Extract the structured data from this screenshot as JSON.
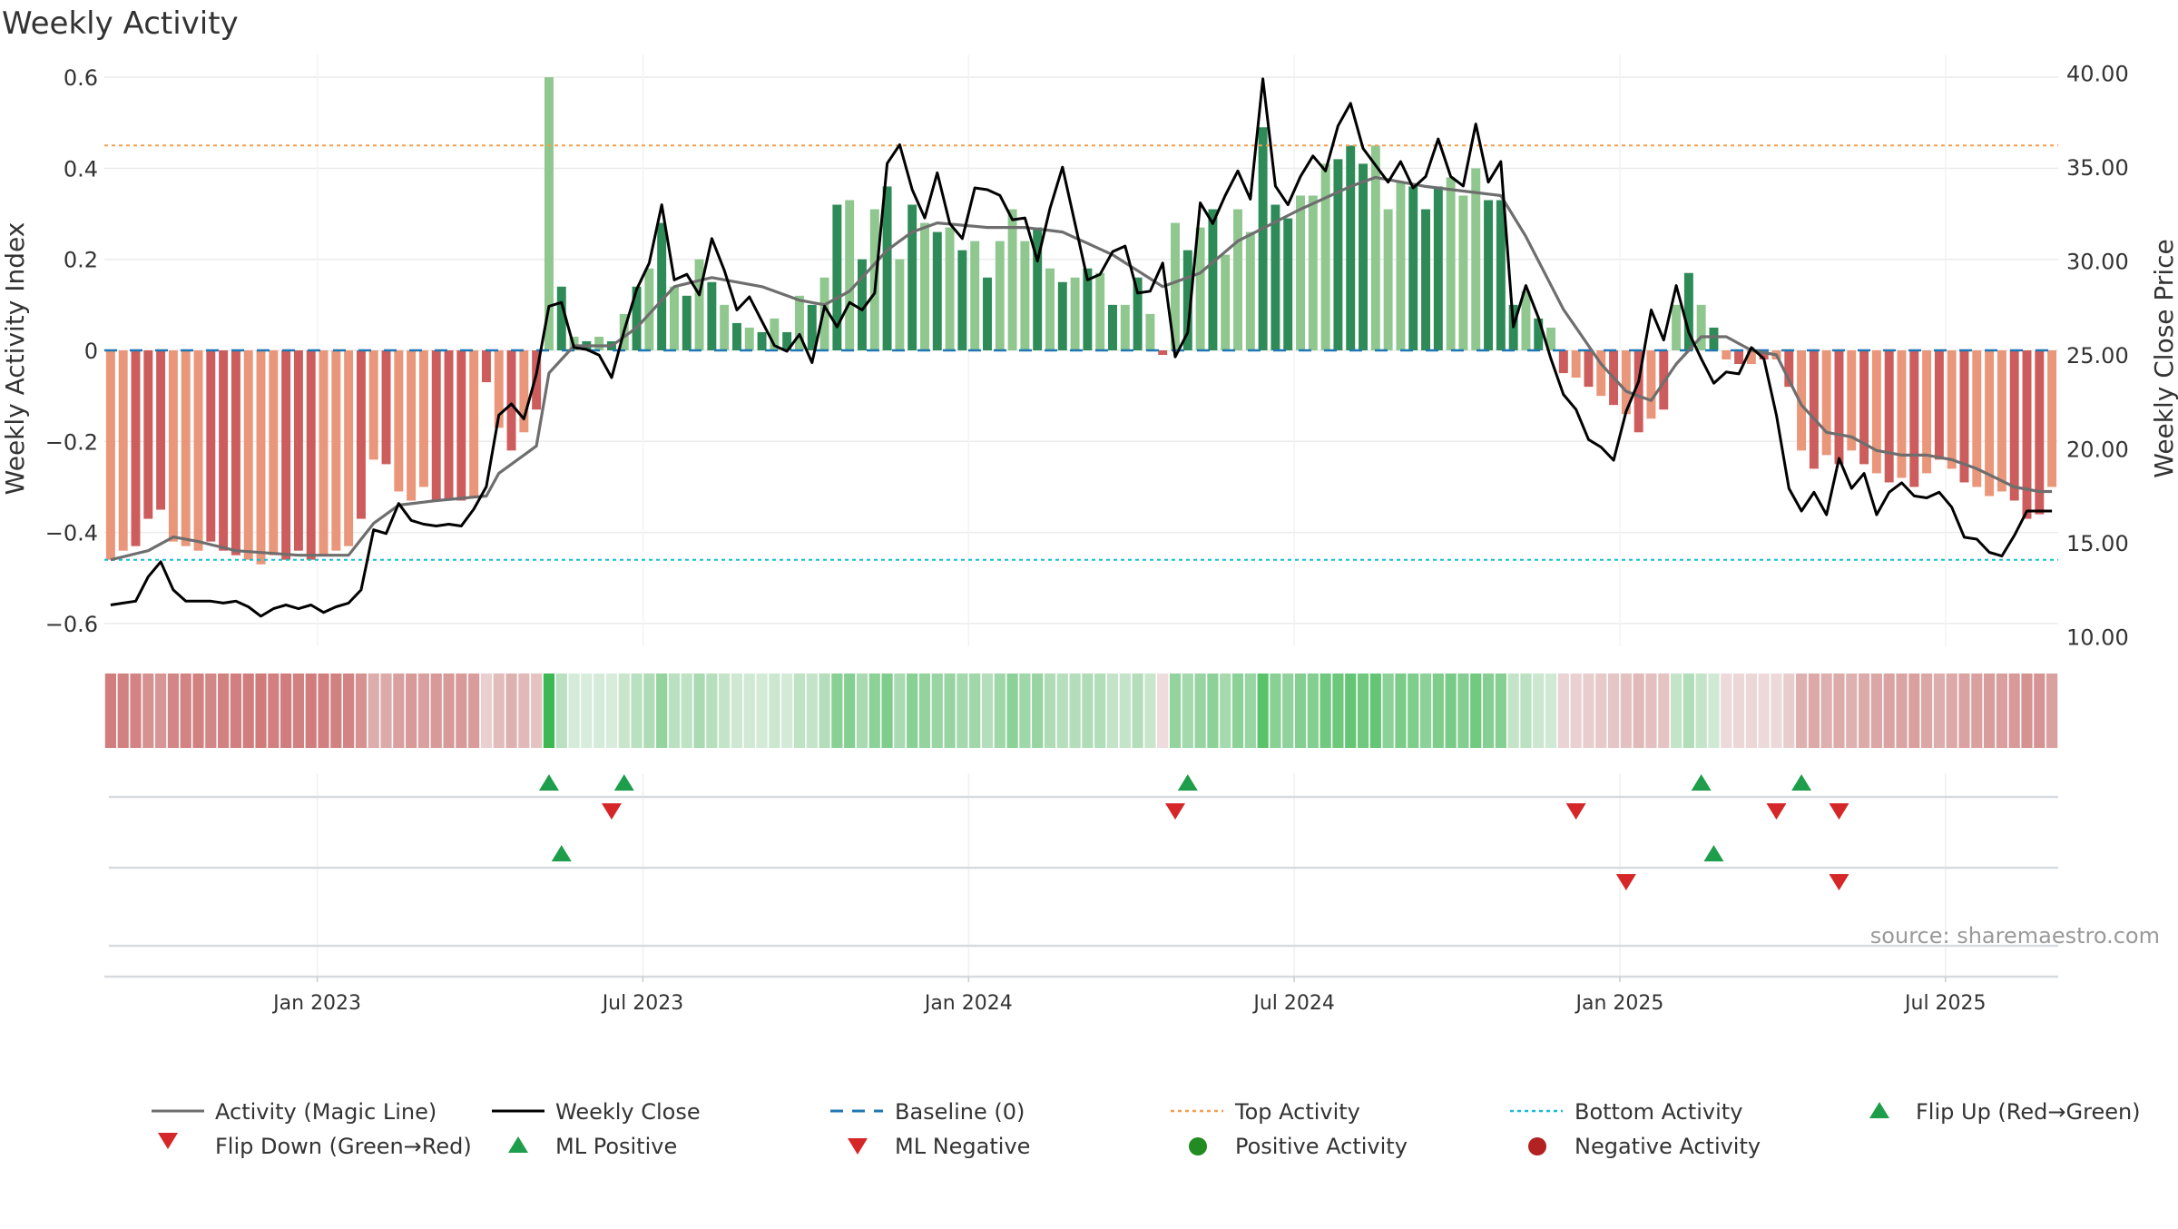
{
  "chart_data": {
    "type": "bar",
    "title": "Weekly Activity",
    "ylabel": "Weekly Activity Index",
    "y2label": "Weekly Close Price",
    "ylim": [
      -0.65,
      0.65
    ],
    "y2lim": [
      9.5,
      41.0
    ],
    "yticks": [
      0.6,
      0.4,
      0.2,
      0,
      -0.2,
      -0.4,
      -0.6
    ],
    "ytick_labels": [
      "0.6",
      "0.4",
      "0.2",
      "0",
      "−0.2",
      "−0.4",
      "−0.6"
    ],
    "y2ticks": [
      40,
      35,
      30,
      25,
      20,
      15,
      10
    ],
    "y2tick_labels": [
      "40.00",
      "35.00",
      "30.00",
      "25.00",
      "20.00",
      "15.00",
      "10.00"
    ],
    "xaxis": {
      "weeks": 156,
      "first_week": "2022-09-05",
      "ticks": [
        {
          "label": "Jan 2023",
          "week": 17
        },
        {
          "label": "Jul 2023",
          "week": 43
        },
        {
          "label": "Jan 2024",
          "week": 69
        },
        {
          "label": "Jul 2024",
          "week": 95
        },
        {
          "label": "Jan 2025",
          "week": 121
        },
        {
          "label": "Jul 2025",
          "week": 147
        }
      ]
    },
    "top_activity": 0.45,
    "bottom_activity": -0.46,
    "baseline": 0,
    "activity_anchors": [
      [
        0,
        -0.46
      ],
      [
        1,
        -0.44
      ],
      [
        2,
        -0.43
      ],
      [
        3,
        -0.37
      ],
      [
        4,
        -0.35
      ],
      [
        5,
        -0.42
      ],
      [
        6,
        -0.43
      ],
      [
        7,
        -0.44
      ],
      [
        8,
        -0.42
      ],
      [
        9,
        -0.44
      ],
      [
        10,
        -0.45
      ],
      [
        11,
        -0.46
      ],
      [
        12,
        -0.47
      ],
      [
        13,
        -0.45
      ],
      [
        14,
        -0.46
      ],
      [
        15,
        -0.44
      ],
      [
        16,
        -0.46
      ],
      [
        17,
        -0.45
      ],
      [
        18,
        -0.44
      ],
      [
        19,
        -0.43
      ],
      [
        20,
        -0.37
      ],
      [
        21,
        -0.24
      ],
      [
        22,
        -0.25
      ],
      [
        23,
        -0.31
      ],
      [
        24,
        -0.33
      ],
      [
        25,
        -0.3
      ],
      [
        26,
        -0.33
      ],
      [
        27,
        -0.33
      ],
      [
        28,
        -0.33
      ],
      [
        29,
        -0.32
      ],
      [
        30,
        -0.07
      ],
      [
        31,
        -0.17
      ],
      [
        32,
        -0.22
      ],
      [
        33,
        -0.18
      ],
      [
        34,
        -0.13
      ],
      [
        35,
        0.6
      ],
      [
        36,
        0.14
      ],
      [
        37,
        0.03
      ],
      [
        38,
        0.02
      ],
      [
        39,
        0.03
      ],
      [
        40,
        0.02
      ],
      [
        41,
        0.08
      ],
      [
        42,
        0.14
      ],
      [
        43,
        0.18
      ],
      [
        44,
        0.28
      ],
      [
        45,
        0.14
      ],
      [
        46,
        0.12
      ],
      [
        47,
        0.2
      ],
      [
        48,
        0.15
      ],
      [
        49,
        0.1
      ],
      [
        50,
        0.06
      ],
      [
        51,
        0.05
      ],
      [
        52,
        0.04
      ],
      [
        53,
        0.07
      ],
      [
        54,
        0.04
      ],
      [
        55,
        0.12
      ],
      [
        56,
        0.1
      ],
      [
        57,
        0.16
      ],
      [
        58,
        0.32
      ],
      [
        59,
        0.33
      ],
      [
        60,
        0.2
      ],
      [
        61,
        0.31
      ],
      [
        62,
        0.36
      ],
      [
        63,
        0.2
      ],
      [
        64,
        0.32
      ],
      [
        65,
        0.28
      ],
      [
        66,
        0.26
      ],
      [
        67,
        0.27
      ],
      [
        68,
        0.22
      ],
      [
        69,
        0.24
      ],
      [
        70,
        0.16
      ],
      [
        71,
        0.24
      ],
      [
        72,
        0.31
      ],
      [
        73,
        0.24
      ],
      [
        74,
        0.27
      ],
      [
        75,
        0.18
      ],
      [
        76,
        0.15
      ],
      [
        77,
        0.16
      ],
      [
        78,
        0.18
      ],
      [
        79,
        0.17
      ],
      [
        80,
        0.1
      ],
      [
        81,
        0.1
      ],
      [
        82,
        0.16
      ],
      [
        83,
        0.08
      ],
      [
        84,
        -0.01
      ],
      [
        85,
        0.28
      ],
      [
        86,
        0.22
      ],
      [
        87,
        0.27
      ],
      [
        88,
        0.31
      ],
      [
        89,
        0.21
      ],
      [
        90,
        0.31
      ],
      [
        91,
        0.26
      ],
      [
        92,
        0.49
      ],
      [
        93,
        0.32
      ],
      [
        94,
        0.29
      ],
      [
        95,
        0.34
      ],
      [
        96,
        0.34
      ],
      [
        97,
        0.41
      ],
      [
        98,
        0.42
      ],
      [
        99,
        0.45
      ],
      [
        100,
        0.41
      ],
      [
        101,
        0.45
      ],
      [
        102,
        0.31
      ],
      [
        103,
        0.37
      ],
      [
        104,
        0.36
      ],
      [
        105,
        0.31
      ],
      [
        106,
        0.36
      ],
      [
        107,
        0.38
      ],
      [
        108,
        0.34
      ],
      [
        109,
        0.4
      ],
      [
        110,
        0.33
      ],
      [
        111,
        0.33
      ],
      [
        112,
        0.1
      ],
      [
        113,
        0.13
      ],
      [
        114,
        0.07
      ],
      [
        115,
        0.05
      ],
      [
        116,
        -0.05
      ],
      [
        117,
        -0.06
      ],
      [
        118,
        -0.08
      ],
      [
        119,
        -0.1
      ],
      [
        120,
        -0.12
      ],
      [
        121,
        -0.14
      ],
      [
        122,
        -0.18
      ],
      [
        123,
        -0.15
      ],
      [
        124,
        -0.13
      ],
      [
        125,
        0.1
      ],
      [
        126,
        0.17
      ],
      [
        127,
        0.1
      ],
      [
        128,
        0.05
      ],
      [
        129,
        -0.02
      ],
      [
        130,
        -0.03
      ],
      [
        131,
        -0.03
      ],
      [
        132,
        -0.02
      ],
      [
        133,
        -0.02
      ],
      [
        134,
        -0.08
      ],
      [
        135,
        -0.22
      ],
      [
        136,
        -0.26
      ],
      [
        137,
        -0.23
      ],
      [
        138,
        -0.25
      ],
      [
        139,
        -0.22
      ],
      [
        140,
        -0.25
      ],
      [
        141,
        -0.27
      ],
      [
        142,
        -0.29
      ],
      [
        143,
        -0.28
      ],
      [
        144,
        -0.3
      ],
      [
        145,
        -0.27
      ],
      [
        146,
        -0.24
      ],
      [
        147,
        -0.26
      ],
      [
        148,
        -0.29
      ],
      [
        149,
        -0.3
      ],
      [
        150,
        -0.32
      ],
      [
        151,
        -0.31
      ],
      [
        152,
        -0.33
      ],
      [
        153,
        -0.37
      ],
      [
        154,
        -0.36
      ],
      [
        155,
        -0.3
      ]
    ],
    "close_anchors": [
      [
        0,
        11.7
      ],
      [
        2,
        11.9
      ],
      [
        3,
        13.2
      ],
      [
        4,
        14.0
      ],
      [
        5,
        12.5
      ],
      [
        6,
        11.9
      ],
      [
        8,
        11.9
      ],
      [
        9,
        11.8
      ],
      [
        10,
        11.9
      ],
      [
        11,
        11.6
      ],
      [
        12,
        11.1
      ],
      [
        13,
        11.5
      ],
      [
        14,
        11.7
      ],
      [
        15,
        11.5
      ],
      [
        16,
        11.7
      ],
      [
        17,
        11.3
      ],
      [
        18,
        11.6
      ],
      [
        19,
        11.8
      ],
      [
        20,
        12.5
      ],
      [
        21,
        15.7
      ],
      [
        22,
        15.5
      ],
      [
        23,
        17.1
      ],
      [
        24,
        16.2
      ],
      [
        25,
        16.0
      ],
      [
        26,
        15.9
      ],
      [
        27,
        16.0
      ],
      [
        28,
        15.9
      ],
      [
        29,
        16.8
      ],
      [
        30,
        18.0
      ],
      [
        31,
        21.8
      ],
      [
        32,
        22.4
      ],
      [
        33,
        21.6
      ],
      [
        34,
        24.0
      ],
      [
        35,
        27.6
      ],
      [
        36,
        27.8
      ],
      [
        37,
        25.4
      ],
      [
        38,
        25.3
      ],
      [
        39,
        25.0
      ],
      [
        40,
        23.8
      ],
      [
        41,
        26.3
      ],
      [
        42,
        28.5
      ],
      [
        43,
        29.9
      ],
      [
        44,
        33.0
      ],
      [
        45,
        29.0
      ],
      [
        46,
        29.3
      ],
      [
        47,
        28.2
      ],
      [
        48,
        31.2
      ],
      [
        49,
        29.5
      ],
      [
        50,
        27.4
      ],
      [
        51,
        28.1
      ],
      [
        52,
        26.8
      ],
      [
        53,
        25.5
      ],
      [
        54,
        25.2
      ],
      [
        55,
        26.1
      ],
      [
        56,
        24.6
      ],
      [
        57,
        27.6
      ],
      [
        58,
        26.5
      ],
      [
        59,
        27.8
      ],
      [
        60,
        27.4
      ],
      [
        61,
        28.3
      ],
      [
        62,
        35.2
      ],
      [
        63,
        36.2
      ],
      [
        64,
        33.8
      ],
      [
        65,
        32.3
      ],
      [
        66,
        34.7
      ],
      [
        67,
        32.0
      ],
      [
        68,
        31.2
      ],
      [
        69,
        33.9
      ],
      [
        70,
        33.8
      ],
      [
        71,
        33.5
      ],
      [
        72,
        32.2
      ],
      [
        73,
        32.3
      ],
      [
        74,
        30.0
      ],
      [
        75,
        32.8
      ],
      [
        76,
        35.0
      ],
      [
        77,
        32.0
      ],
      [
        78,
        29.0
      ],
      [
        79,
        29.3
      ],
      [
        80,
        30.5
      ],
      [
        81,
        30.8
      ],
      [
        82,
        28.3
      ],
      [
        83,
        28.4
      ],
      [
        84,
        29.9
      ],
      [
        85,
        24.9
      ],
      [
        86,
        26.2
      ],
      [
        87,
        33.1
      ],
      [
        88,
        32.0
      ],
      [
        89,
        33.5
      ],
      [
        90,
        34.8
      ],
      [
        91,
        33.3
      ],
      [
        92,
        39.7
      ],
      [
        93,
        34.0
      ],
      [
        94,
        33.0
      ],
      [
        95,
        34.5
      ],
      [
        96,
        35.6
      ],
      [
        97,
        34.8
      ],
      [
        98,
        37.2
      ],
      [
        99,
        38.4
      ],
      [
        100,
        36.0
      ],
      [
        101,
        35.1
      ],
      [
        102,
        34.2
      ],
      [
        103,
        35.3
      ],
      [
        104,
        33.9
      ],
      [
        105,
        34.5
      ],
      [
        106,
        36.5
      ],
      [
        107,
        34.5
      ],
      [
        108,
        34.0
      ],
      [
        109,
        37.3
      ],
      [
        110,
        34.2
      ],
      [
        111,
        35.3
      ],
      [
        112,
        26.5
      ],
      [
        113,
        28.7
      ],
      [
        114,
        27.0
      ],
      [
        115,
        24.8
      ],
      [
        116,
        22.9
      ],
      [
        117,
        22.1
      ],
      [
        118,
        20.5
      ],
      [
        119,
        20.1
      ],
      [
        120,
        19.4
      ],
      [
        121,
        22.0
      ],
      [
        122,
        23.6
      ],
      [
        123,
        27.4
      ],
      [
        124,
        25.8
      ],
      [
        125,
        28.7
      ],
      [
        126,
        26.2
      ],
      [
        127,
        24.8
      ],
      [
        128,
        23.5
      ],
      [
        129,
        24.1
      ],
      [
        130,
        24.0
      ],
      [
        131,
        25.4
      ],
      [
        132,
        24.8
      ],
      [
        133,
        21.8
      ],
      [
        134,
        17.9
      ],
      [
        135,
        16.7
      ],
      [
        136,
        17.7
      ],
      [
        137,
        16.5
      ],
      [
        138,
        19.5
      ],
      [
        139,
        17.9
      ],
      [
        140,
        18.7
      ],
      [
        141,
        16.5
      ],
      [
        142,
        17.7
      ],
      [
        143,
        18.2
      ],
      [
        144,
        17.5
      ],
      [
        145,
        17.4
      ],
      [
        146,
        17.7
      ],
      [
        147,
        16.9
      ],
      [
        148,
        15.3
      ],
      [
        149,
        15.2
      ],
      [
        150,
        14.5
      ],
      [
        151,
        14.3
      ],
      [
        152,
        15.4
      ],
      [
        153,
        16.7
      ]
    ],
    "magic_line_anchors": [
      [
        0,
        -0.46
      ],
      [
        3,
        -0.44
      ],
      [
        5,
        -0.41
      ],
      [
        7,
        -0.42
      ],
      [
        10,
        -0.44
      ],
      [
        15,
        -0.45
      ],
      [
        19,
        -0.45
      ],
      [
        21,
        -0.38
      ],
      [
        23,
        -0.34
      ],
      [
        26,
        -0.33
      ],
      [
        30,
        -0.32
      ],
      [
        31,
        -0.27
      ],
      [
        33,
        -0.23
      ],
      [
        34,
        -0.21
      ],
      [
        35,
        -0.05
      ],
      [
        37,
        0.01
      ],
      [
        40,
        0.01
      ],
      [
        42,
        0.05
      ],
      [
        45,
        0.14
      ],
      [
        48,
        0.16
      ],
      [
        52,
        0.14
      ],
      [
        55,
        0.11
      ],
      [
        57,
        0.1
      ],
      [
        59,
        0.13
      ],
      [
        62,
        0.22
      ],
      [
        64,
        0.26
      ],
      [
        66,
        0.28
      ],
      [
        70,
        0.27
      ],
      [
        73,
        0.27
      ],
      [
        76,
        0.26
      ],
      [
        80,
        0.21
      ],
      [
        84,
        0.14
      ],
      [
        87,
        0.17
      ],
      [
        90,
        0.24
      ],
      [
        95,
        0.31
      ],
      [
        99,
        0.36
      ],
      [
        101,
        0.38
      ],
      [
        105,
        0.36
      ],
      [
        108,
        0.35
      ],
      [
        111,
        0.34
      ],
      [
        113,
        0.25
      ],
      [
        116,
        0.09
      ],
      [
        119,
        -0.03
      ],
      [
        121,
        -0.09
      ],
      [
        123,
        -0.11
      ],
      [
        125,
        -0.03
      ],
      [
        127,
        0.03
      ],
      [
        129,
        0.03
      ],
      [
        131,
        0.0
      ],
      [
        133,
        -0.01
      ],
      [
        135,
        -0.12
      ],
      [
        137,
        -0.18
      ],
      [
        139,
        -0.19
      ],
      [
        141,
        -0.22
      ],
      [
        143,
        -0.23
      ],
      [
        145,
        -0.23
      ],
      [
        147,
        -0.24
      ],
      [
        149,
        -0.26
      ],
      [
        152,
        -0.3
      ],
      [
        154,
        -0.31
      ]
    ],
    "flip_up_weeks": [
      35,
      41,
      86,
      127,
      135
    ],
    "flip_down_weeks": [
      40,
      85,
      117,
      133,
      138
    ],
    "ml_positive_weeks": [
      36,
      128
    ],
    "ml_negative_weeks": [
      121,
      138
    ],
    "legend": {
      "magic_line": "Activity (Magic Line)",
      "weekly_close": "Weekly Close",
      "baseline": "Baseline (0)",
      "top_activity": "Top Activity",
      "bottom_activity": "Bottom Activity",
      "flip_up": "Flip Up (Red→Green)",
      "flip_down": "Flip Down (Green→Red)",
      "ml_positive": "ML Positive",
      "ml_negative": "ML Negative",
      "positive_activity": "Positive Activity",
      "negative_activity": "Negative Activity"
    },
    "legend_placement": "bottom",
    "source": "source: sharemaestro.com"
  },
  "colors": {
    "pos_strong": "#2e8b57",
    "pos_light": "#8fc78f",
    "neg_strong": "#cd5c5c",
    "neg_light": "#e9967a",
    "magic_line": "#6e6e6e",
    "close_line": "#000000",
    "baseline": "#1f77b4",
    "top_line": "#f0a050",
    "bottom_line": "#17becf",
    "flip_up": "#1e9e4a",
    "flip_down": "#d62728",
    "pos_dot": "#228b22",
    "neg_dot": "#b22222"
  }
}
